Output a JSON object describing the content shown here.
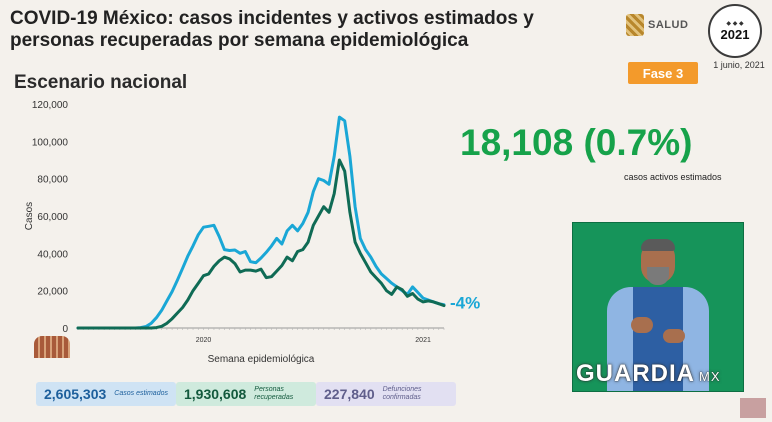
{
  "header": {
    "title": "COVID-19 México: casos incidentes y activos estimados y personas recuperadas por semana epidemiológica",
    "subtitle": "Escenario nacional",
    "salud_label": "SALUD",
    "seal_year": "2021",
    "phase": "Fase 3",
    "date": "1 junio, 2021"
  },
  "highlight": {
    "value": "18,108 (0.7%)",
    "label": "casos activos estimados",
    "change": "-4%"
  },
  "stats": [
    {
      "value": "2,605,303",
      "label": "Casos estimados"
    },
    {
      "value": "1,930,608",
      "label": "Personas recuperadas"
    },
    {
      "value": "227,840",
      "label": "Defunciones confirmadas"
    }
  ],
  "watermark": {
    "brand": "GUARDIA",
    "suffix": "MX"
  },
  "colors": {
    "incident": "#1aa7d6",
    "active": "#0f6b55",
    "accent_green": "#16a24a",
    "phase_orange": "#f39a2b"
  },
  "chart_data": {
    "type": "line",
    "xlabel": "Semana epidemiológica",
    "ylabel": "Casos",
    "ylim": [
      0,
      120000
    ],
    "yticks": [
      "0",
      "20,000",
      "40,000",
      "60,000",
      "80,000",
      "100,000",
      "120,000"
    ],
    "xtick_labels": [
      {
        "label": "2020",
        "week": 24
      },
      {
        "label": "2021",
        "week": 66
      }
    ],
    "series": [
      {
        "key": "incident",
        "values": [
          0,
          0,
          0,
          0,
          0,
          0,
          0,
          0,
          0,
          0,
          0,
          0,
          200,
          800,
          2500,
          5500,
          9500,
          14500,
          19500,
          25500,
          32000,
          38500,
          44000,
          50000,
          54000,
          54500,
          55000,
          49000,
          42000,
          41500,
          41800,
          40000,
          41000,
          35500,
          35000,
          37500,
          40500,
          44000,
          48000,
          45000,
          52000,
          55000,
          52000,
          56000,
          62000,
          73000,
          80000,
          79000,
          77000,
          92000,
          113000,
          111000,
          92000,
          65000,
          48000,
          42000,
          38000,
          33000,
          29000,
          26500,
          24000,
          22000,
          20000,
          18000,
          22000,
          19000,
          16000,
          15000,
          14000,
          13000,
          12500
        ]
      },
      {
        "key": "active",
        "values": [
          0,
          0,
          0,
          0,
          0,
          0,
          0,
          0,
          0,
          0,
          0,
          0,
          0,
          0,
          0,
          200,
          900,
          2500,
          5000,
          8000,
          11000,
          15000,
          20000,
          24000,
          28000,
          29000,
          33000,
          36000,
          38000,
          37000,
          34500,
          30000,
          31000,
          31000,
          30500,
          31500,
          27000,
          27500,
          30500,
          33500,
          38000,
          36000,
          41000,
          42000,
          46000,
          55000,
          60000,
          65000,
          62000,
          72000,
          90000,
          84000,
          62000,
          46000,
          40000,
          35000,
          30000,
          27000,
          24000,
          20000,
          18000,
          22000,
          20500,
          17000,
          18500,
          15500,
          14000,
          14500,
          14000,
          13000,
          12000
        ]
      }
    ]
  }
}
